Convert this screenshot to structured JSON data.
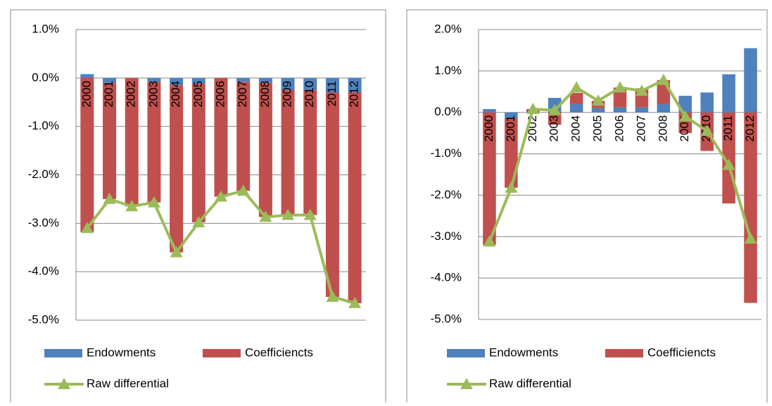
{
  "chart_data": [
    {
      "type": "bar",
      "stacked": true,
      "grid": true,
      "categories": [
        "2000",
        "2001",
        "2002",
        "2003",
        "2004",
        "2005",
        "2006",
        "2007",
        "2008",
        "2009",
        "2010",
        "2011",
        "2012"
      ],
      "ylim": [
        -5,
        1
      ],
      "yticks": [
        {
          "value": 1,
          "label": "1.0%"
        },
        {
          "value": 0,
          "label": "0.0%"
        },
        {
          "value": -1,
          "label": "-1.0%"
        },
        {
          "value": -2,
          "label": "-2.0%"
        },
        {
          "value": -3,
          "label": "-3.0%"
        },
        {
          "value": -4,
          "label": "-4.0%"
        },
        {
          "value": -5,
          "label": "-5.0%"
        }
      ],
      "series": [
        {
          "name": "Endowments",
          "type": "bar",
          "color": "#4f81bd",
          "values": [
            0.08,
            -0.1,
            0,
            -0.08,
            -0.15,
            -0.12,
            0,
            -0.08,
            -0.1,
            -0.25,
            -0.25,
            -0.3,
            -0.3
          ]
        },
        {
          "name": "Coefficiencts",
          "type": "bar",
          "color": "#c0504d",
          "values": [
            -3.18,
            -2.4,
            -2.65,
            -2.49,
            -3.45,
            -2.86,
            -2.45,
            -2.25,
            -2.77,
            -2.58,
            -2.58,
            -4.22,
            -4.35
          ]
        },
        {
          "name": "Raw differential",
          "type": "line",
          "color": "#9bbb59",
          "values": [
            -3.1,
            -2.5,
            -2.65,
            -2.57,
            -3.6,
            -2.98,
            -2.45,
            -2.33,
            -2.87,
            -2.83,
            -2.83,
            -4.52,
            -4.65
          ]
        }
      ]
    },
    {
      "type": "bar",
      "stacked": true,
      "grid": true,
      "categories": [
        "2000",
        "2001",
        "2002",
        "2003",
        "2004",
        "2005",
        "2006",
        "2007",
        "2008",
        "2009",
        "2010",
        "2011",
        "2012"
      ],
      "ylim": [
        -5,
        2
      ],
      "yticks": [
        {
          "value": 2,
          "label": "2.0%"
        },
        {
          "value": 1,
          "label": "1.0%"
        },
        {
          "value": 0,
          "label": "0.0%"
        },
        {
          "value": -1,
          "label": "-1.0%"
        },
        {
          "value": -2,
          "label": "-2.0%"
        },
        {
          "value": -3,
          "label": "-3.0%"
        },
        {
          "value": -4,
          "label": "-4.0%"
        },
        {
          "value": -5,
          "label": "-5.0%"
        }
      ],
      "series": [
        {
          "name": "Endowments",
          "type": "bar",
          "color": "#4f81bd",
          "values": [
            0.08,
            -0.15,
            0,
            0.35,
            0.2,
            0.1,
            0.12,
            0.12,
            0.2,
            0.4,
            0.48,
            0.92,
            1.55
          ]
        },
        {
          "name": "Coefficiencts",
          "type": "bar",
          "color": "#c0504d",
          "values": [
            -3.2,
            -1.67,
            0.08,
            -0.3,
            0.27,
            0.18,
            0.48,
            0.46,
            0.58,
            -0.5,
            -0.93,
            -2.2,
            -4.6
          ]
        },
        {
          "name": "Raw differential",
          "type": "line",
          "color": "#9bbb59",
          "values": [
            -3.12,
            -1.82,
            0.08,
            0.05,
            0.6,
            0.28,
            0.6,
            0.52,
            0.78,
            -0.1,
            -0.45,
            -1.27,
            -3.05
          ]
        }
      ]
    }
  ]
}
